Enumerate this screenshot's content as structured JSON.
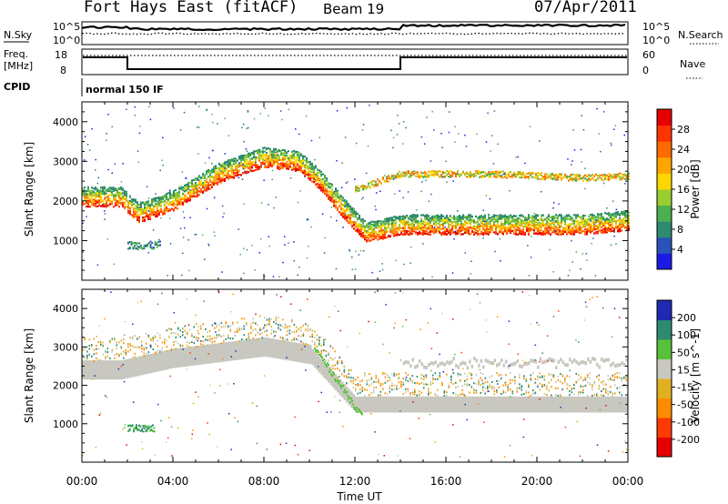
{
  "header": {
    "station": "Fort Hays East (fitACF)",
    "beam": "Beam 19",
    "date": "07/Apr/2011"
  },
  "noise_panel": {
    "left_label": "N.Sky",
    "right_label": "N.Search",
    "left_ticks": [
      "10^5",
      "10^0"
    ],
    "right_ticks": [
      "10^5",
      "10^0"
    ]
  },
  "freq_panel": {
    "left_label_1": "Freq.",
    "left_label_2": "[MHz]",
    "right_label": "Nave",
    "left_ticks": [
      "18",
      "8"
    ],
    "right_ticks": [
      "60",
      "0"
    ]
  },
  "cpid_panel": {
    "label": "CPID",
    "value": "normal 150 IF"
  },
  "x_axis": {
    "label": "Time UT",
    "ticks": [
      "00:00",
      "04:00",
      "08:00",
      "12:00",
      "16:00",
      "20:00",
      "00:00"
    ]
  },
  "colors": {
    "power": [
      "#1a1ae6",
      "#2a52b8",
      "#2e8a70",
      "#4caf50",
      "#9acd32",
      "#ffd700",
      "#ffa500",
      "#ff6a00",
      "#ff3300",
      "#e60000"
    ],
    "velocity": [
      "#1e2ab0",
      "#2e8a70",
      "#58c13a",
      "#c8c8c0",
      "#e0b020",
      "#ff8c00",
      "#ff3a00",
      "#e60000"
    ]
  },
  "chart_data": [
    {
      "type": "heatmap",
      "name": "power",
      "ylabel": "Slant Range [km]",
      "xlabel": "",
      "x_range_hours": [
        0,
        24
      ],
      "ylim": [
        0,
        4500
      ],
      "yticks": [
        "1000",
        "2000",
        "3000",
        "4000"
      ],
      "colorbar": {
        "label": "Power [dB]",
        "ticks": [
          "4",
          "8",
          "12",
          "16",
          "20",
          "24",
          "28"
        ],
        "range": [
          0,
          32
        ]
      },
      "features": [
        {
          "desc": "main backscatter band",
          "time_h": [
            0,
            1.7,
            2.5,
            4,
            6,
            8,
            9.5,
            10.5,
            11.5,
            12.5,
            14,
            18,
            22,
            24
          ],
          "range_km": [
            2000,
            2000,
            1600,
            1900,
            2600,
            3000,
            2900,
            2400,
            1700,
            1100,
            1300,
            1300,
            1300,
            1400
          ],
          "peak_db": 28
        },
        {
          "desc": "upper band",
          "time_h": [
            12,
            14,
            18,
            22,
            24
          ],
          "range_km": [
            2300,
            2700,
            2700,
            2600,
            2650
          ],
          "peak_db": 18
        },
        {
          "desc": "near-range patch",
          "time_h": [
            2,
            3.4
          ],
          "range_km": [
            900,
            900
          ],
          "peak_db": 10
        }
      ]
    },
    {
      "type": "heatmap",
      "name": "velocity",
      "ylabel": "Slant Range [km]",
      "xlabel": "Time UT",
      "x_range_hours": [
        0,
        24
      ],
      "ylim": [
        0,
        4500
      ],
      "yticks": [
        "1000",
        "2000",
        "3000",
        "4000"
      ],
      "colorbar": {
        "label": "Velocity [m s^-1]",
        "ticks": [
          "200",
          "100",
          "50",
          "15",
          "-15",
          "-50",
          "-100",
          "-200"
        ],
        "range": [
          -250,
          250
        ]
      },
      "features": [
        {
          "desc": "ground scatter (grey)",
          "time_h": [
            0,
            1.7,
            4,
            8,
            10,
            12,
            14,
            24
          ],
          "range_km": [
            2400,
            2400,
            2700,
            3000,
            2800,
            1500,
            1500,
            1500
          ],
          "velocity_ms": 0
        },
        {
          "desc": "green streak",
          "time_h": [
            10.2,
            12.3
          ],
          "range_km": [
            3000,
            1200
          ],
          "velocity_ms": 60
        },
        {
          "desc": "green near-range patch",
          "time_h": [
            2,
            3.2
          ],
          "range_km": [
            900,
            900
          ],
          "velocity_ms": 60
        }
      ]
    }
  ]
}
